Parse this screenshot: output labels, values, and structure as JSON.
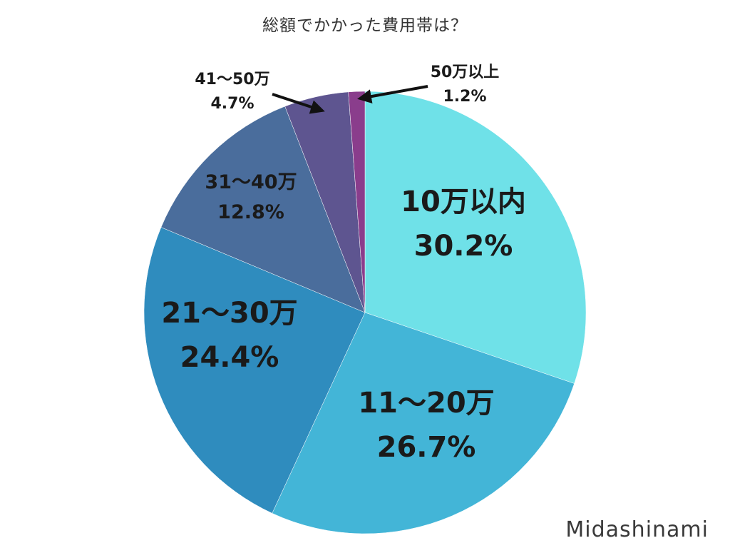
{
  "chart_data": {
    "type": "pie",
    "title": "総額でかかった費用帯は？",
    "slices": [
      {
        "label": "10万以内",
        "value": 30.2,
        "value_label": "30.2%",
        "color": "#6fe1e8"
      },
      {
        "label": "11〜20万",
        "value": 26.7,
        "value_label": "26.7%",
        "color": "#43b5d7"
      },
      {
        "label": "21〜30万",
        "value": 24.4,
        "value_label": "24.4%",
        "color": "#2f8cbe"
      },
      {
        "label": "31〜40万",
        "value": 12.8,
        "value_label": "12.8%",
        "color": "#4a6d9c"
      },
      {
        "label": "41〜50万",
        "value": 4.7,
        "value_label": "4.7%",
        "color": "#5e5590"
      },
      {
        "label": "50万以上",
        "value": 1.2,
        "value_label": "1.2%",
        "color": "#8a3d8c"
      }
    ]
  },
  "watermark": "Midashinami"
}
